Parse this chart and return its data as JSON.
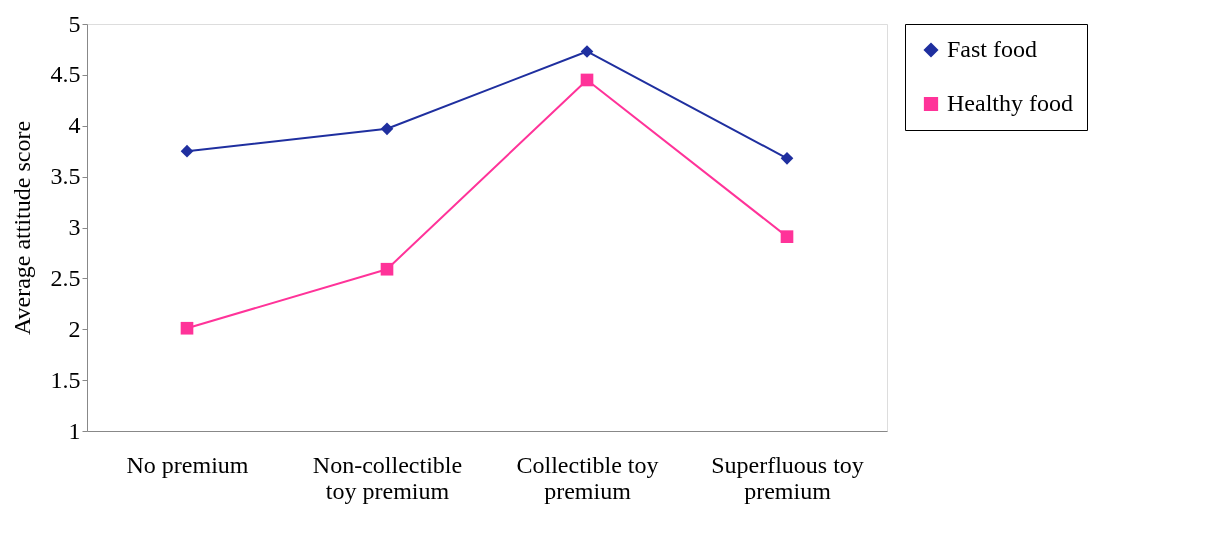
{
  "chart_data": {
    "type": "line",
    "ylabel": "Average attitude score",
    "categories": [
      "No premium",
      "Non-collectible toy premium",
      "Collectible toy premium",
      "Superfluous toy premium"
    ],
    "series": [
      {
        "name": "Fast food",
        "color": "#1f2f9f",
        "marker": "diamond",
        "values": [
          3.75,
          3.97,
          4.73,
          3.68
        ]
      },
      {
        "name": "Healthy food",
        "color": "#ff3399",
        "marker": "square",
        "values": [
          2.01,
          2.59,
          4.45,
          2.91
        ]
      }
    ],
    "ylim": [
      1,
      5
    ],
    "yticks": [
      1,
      1.5,
      2,
      2.5,
      3,
      3.5,
      4,
      4.5,
      5
    ],
    "grid": false,
    "legend": "right",
    "line_style": "solid"
  }
}
